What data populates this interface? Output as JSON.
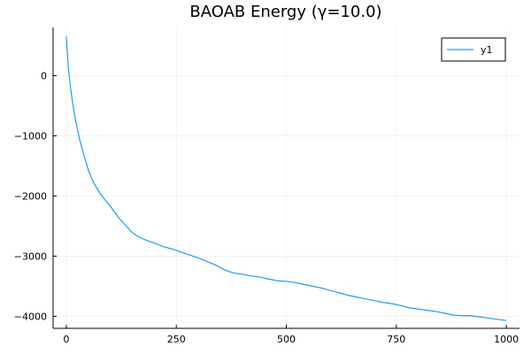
{
  "chart_data": {
    "type": "line",
    "title": "BAOAB Energy (γ=10.0)",
    "xlabel": "",
    "ylabel": "",
    "xlim": [
      0,
      1000
    ],
    "ylim": [
      -4200,
      800
    ],
    "xticks": [
      0,
      250,
      500,
      750,
      1000
    ],
    "xtick_labels": [
      "0",
      "250",
      "500",
      "750",
      "1000"
    ],
    "yticks": [
      -4000,
      -3000,
      -2000,
      -1000,
      0
    ],
    "ytick_labels": [
      "−4000",
      "−3000",
      "−2000",
      "−1000",
      "0"
    ],
    "grid": true,
    "legend": {
      "position": "top-right",
      "entries": [
        "y1"
      ]
    },
    "series": [
      {
        "name": "y1",
        "color": "#1f9cf0",
        "x": [
          0,
          5,
          10,
          15,
          20,
          25,
          30,
          40,
          50,
          60,
          70,
          80,
          90,
          100,
          110,
          120,
          130,
          140,
          150,
          160,
          170,
          180,
          190,
          200,
          220,
          240,
          260,
          280,
          300,
          320,
          340,
          360,
          380,
          400,
          420,
          440,
          460,
          480,
          500,
          520,
          540,
          560,
          580,
          600,
          620,
          640,
          660,
          680,
          700,
          720,
          740,
          760,
          780,
          800,
          820,
          840,
          860,
          880,
          900,
          920,
          940,
          960,
          980,
          1000
        ],
        "y": [
          650,
          100,
          -220,
          -480,
          -700,
          -880,
          -1050,
          -1320,
          -1570,
          -1750,
          -1880,
          -1990,
          -2080,
          -2170,
          -2270,
          -2370,
          -2450,
          -2530,
          -2610,
          -2660,
          -2700,
          -2730,
          -2760,
          -2780,
          -2840,
          -2880,
          -2930,
          -2980,
          -3030,
          -3090,
          -3150,
          -3230,
          -3280,
          -3300,
          -3330,
          -3350,
          -3380,
          -3410,
          -3420,
          -3440,
          -3470,
          -3500,
          -3530,
          -3570,
          -3610,
          -3650,
          -3680,
          -3710,
          -3740,
          -3770,
          -3790,
          -3820,
          -3860,
          -3880,
          -3900,
          -3920,
          -3950,
          -3980,
          -3990,
          -3990,
          -4010,
          -4030,
          -4050,
          -4070
        ]
      }
    ]
  }
}
